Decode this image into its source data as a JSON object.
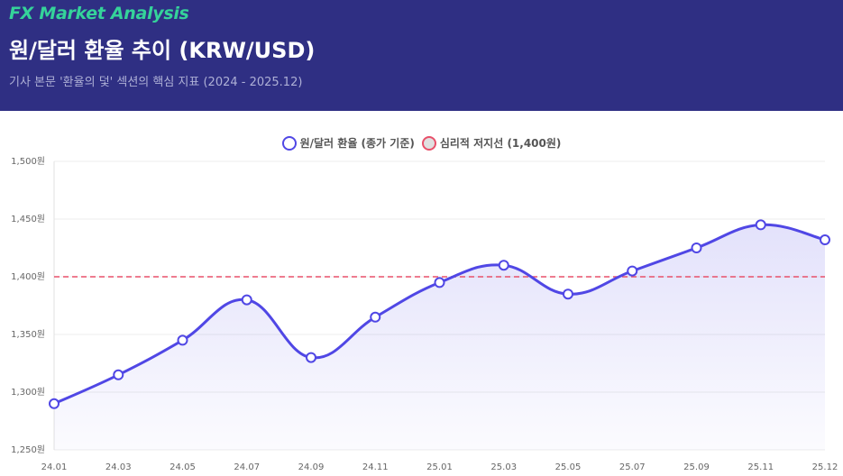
{
  "header": {
    "brand": "FX Market Analysis",
    "title": "원/달러 환율 추이 (KRW/USD)",
    "subtitle": "기사 본문 '환율의 덫' 섹션의 핵심 지표 (2024 - 2025.12)"
  },
  "colors": {
    "header_bg": "#2f2f83",
    "brand": "#35d39a",
    "line": "#5047e5",
    "threshold": "#e8506a"
  },
  "chart_data": {
    "type": "line",
    "title": "원/달러 환율 추이 (KRW/USD)",
    "categories": [
      "24.01",
      "24.03",
      "24.05",
      "24.07",
      "24.09",
      "24.11",
      "25.01",
      "25.03",
      "25.05",
      "25.07",
      "25.09",
      "25.11",
      "25.12"
    ],
    "series": [
      {
        "name": "원/달러 환율 (종가 기준)",
        "values": [
          1290,
          1315,
          1345,
          1380,
          1330,
          1365,
          1395,
          1410,
          1385,
          1405,
          1425,
          1445,
          1432
        ]
      }
    ],
    "threshold": {
      "name": "심리적 저지선 (1,400원)",
      "value": 1400
    },
    "ylim": [
      1250,
      1500
    ],
    "yticks": [
      1250,
      1300,
      1350,
      1400,
      1450,
      1500
    ],
    "ytick_labels": [
      "1,250원",
      "1,300원",
      "1,350원",
      "1,400원",
      "1,450원",
      "1,500원"
    ],
    "grid": true,
    "legend_position": "top-center",
    "area_fill": true
  }
}
